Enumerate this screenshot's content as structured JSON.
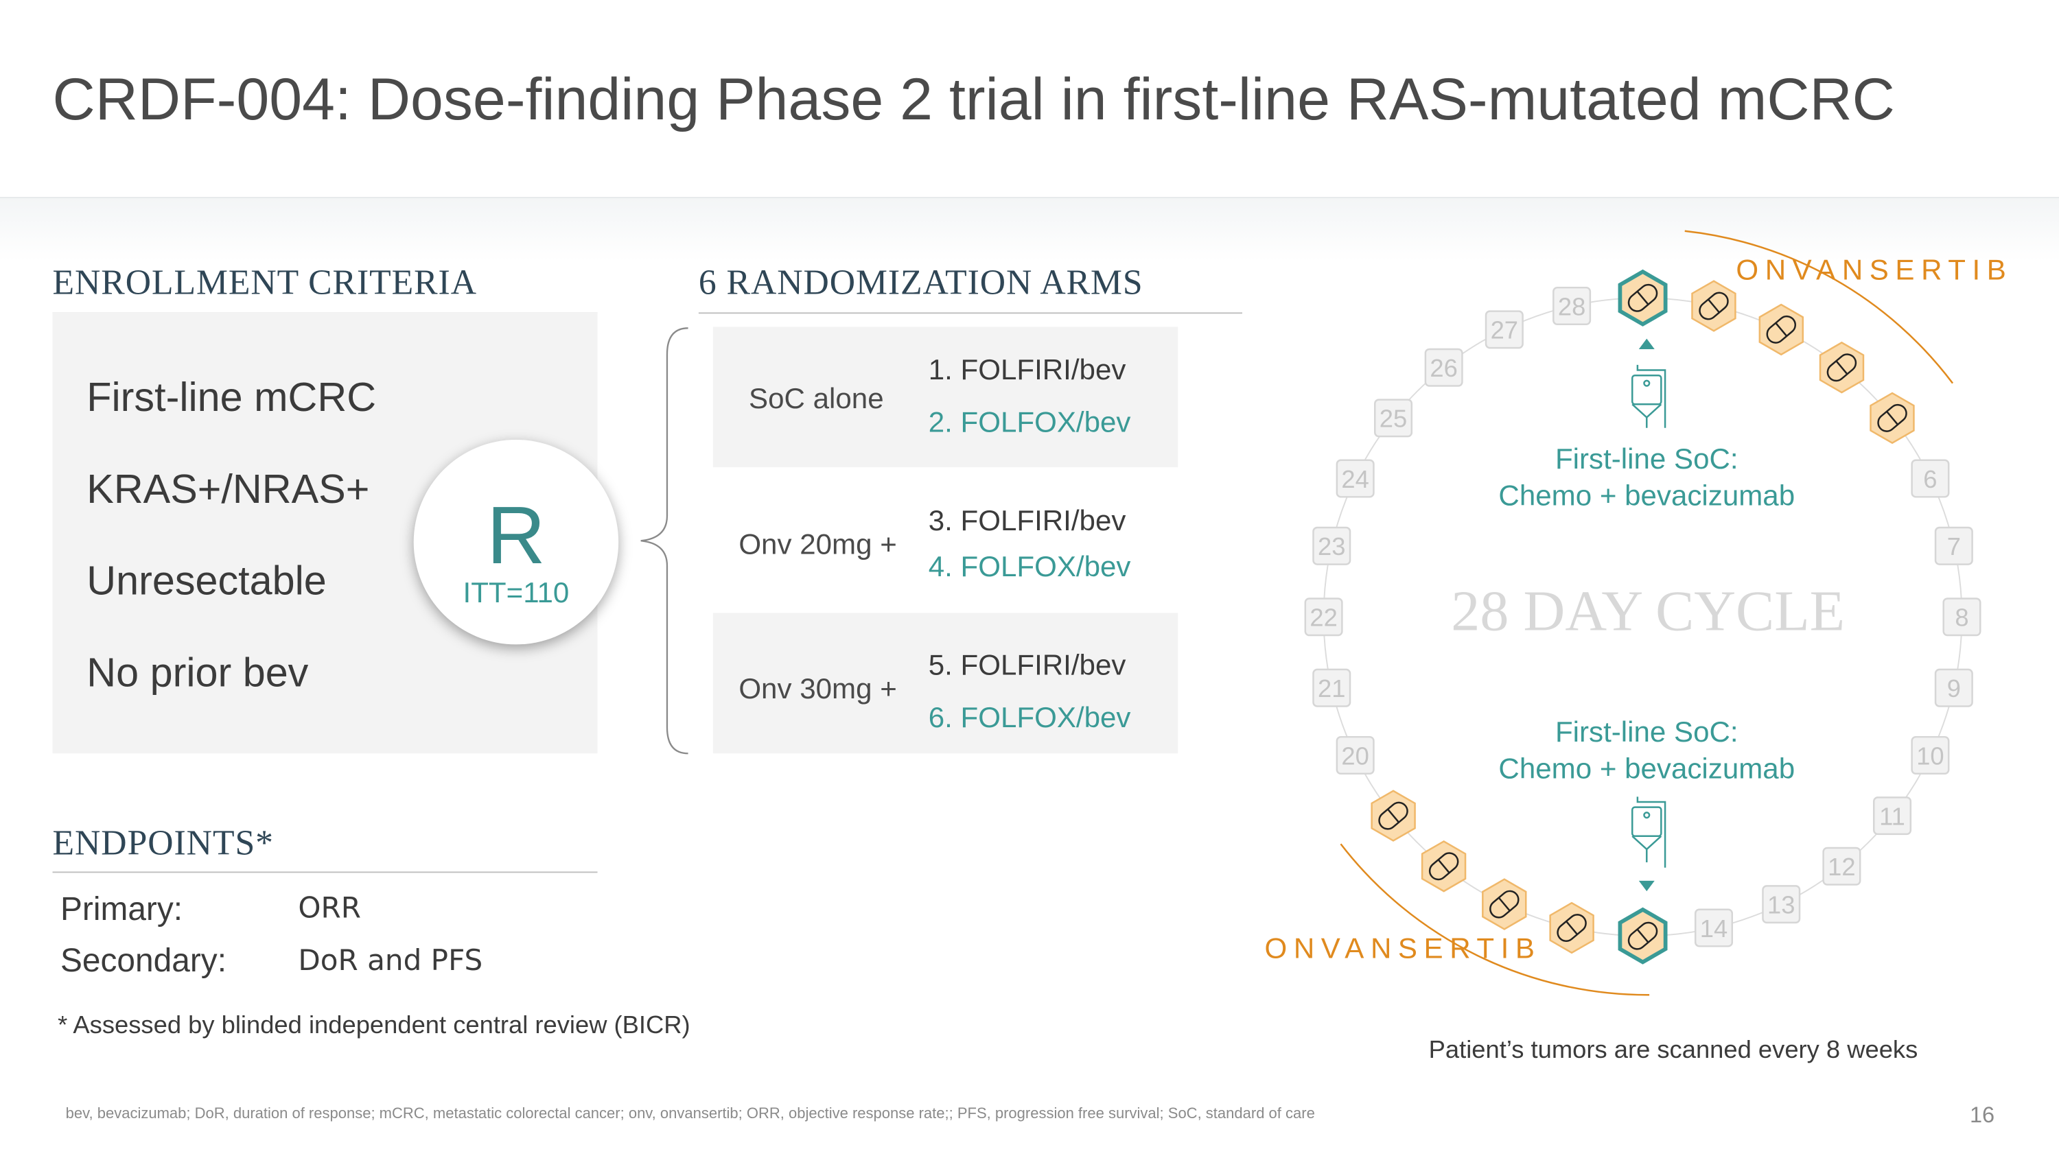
{
  "title": "CRDF-004: Dose-finding Phase 2 trial in first-line RAS-mutated mCRC",
  "enrollment": {
    "heading": "ENROLLMENT CRITERIA",
    "criteria": [
      "First-line mCRC",
      "KRAS+/NRAS+",
      "Unresectable",
      "No prior bev"
    ],
    "randomization_letter": "R",
    "itt": "ITT=110"
  },
  "arms": {
    "heading": "6 RANDOMIZATION ARMS",
    "groups": [
      {
        "label": "SoC alone",
        "a": "1. FOLFIRI/bev",
        "b": "2. FOLFOX/bev"
      },
      {
        "label": "Onv 20mg +",
        "a": "3. FOLFIRI/bev",
        "b": "4. FOLFOX/bev"
      },
      {
        "label": "Onv 30mg +",
        "a": "5. FOLFIRI/bev",
        "b": "6. FOLFOX/bev"
      }
    ]
  },
  "endpoints": {
    "heading": "ENDPOINTS*",
    "primary_label": "Primary:",
    "primary_value": "ORR",
    "secondary_label": "Secondary:",
    "secondary_value": "DoR and PFS",
    "note": "*  Assessed by blinded independent central review (BICR)"
  },
  "cycle": {
    "center_label": "28 DAY CYCLE",
    "soc_line1": "First-line SoC:",
    "soc_line2": "Chemo + bevacizumab",
    "drug_label": "ONVANSERTIB",
    "scan_note": "Patient’s tumors are scanned every 8 weeks",
    "days": [
      {
        "day": 1,
        "type": "soc-pill"
      },
      {
        "day": 2,
        "type": "pill"
      },
      {
        "day": 3,
        "type": "pill"
      },
      {
        "day": 4,
        "type": "pill"
      },
      {
        "day": 5,
        "type": "pill"
      },
      {
        "day": 6,
        "type": "box"
      },
      {
        "day": 7,
        "type": "box"
      },
      {
        "day": 8,
        "type": "box"
      },
      {
        "day": 9,
        "type": "box"
      },
      {
        "day": 10,
        "type": "box"
      },
      {
        "day": 11,
        "type": "box"
      },
      {
        "day": 12,
        "type": "box"
      },
      {
        "day": 13,
        "type": "box"
      },
      {
        "day": 14,
        "type": "box"
      },
      {
        "day": 15,
        "type": "soc-pill"
      },
      {
        "day": 16,
        "type": "pill"
      },
      {
        "day": 17,
        "type": "pill"
      },
      {
        "day": 18,
        "type": "pill"
      },
      {
        "day": 19,
        "type": "pill"
      },
      {
        "day": 20,
        "type": "box"
      },
      {
        "day": 21,
        "type": "box"
      },
      {
        "day": 22,
        "type": "box"
      },
      {
        "day": 23,
        "type": "box"
      },
      {
        "day": 24,
        "type": "box"
      },
      {
        "day": 25,
        "type": "box"
      },
      {
        "day": 26,
        "type": "box"
      },
      {
        "day": 27,
        "type": "box"
      },
      {
        "day": 28,
        "type": "box"
      }
    ],
    "colors": {
      "teal": "#3a9a96",
      "orange": "#e08a1e",
      "pill_fill": "#fbdcae",
      "box": "#f2f2f2"
    }
  },
  "footnote": "bev, bevacizumab; DoR, duration of response; mCRC, metastatic colorectal cancer; onv, onvansertib; ORR, objective response rate;; PFS, progression free survival; SoC, standard of care",
  "page_number": "16"
}
